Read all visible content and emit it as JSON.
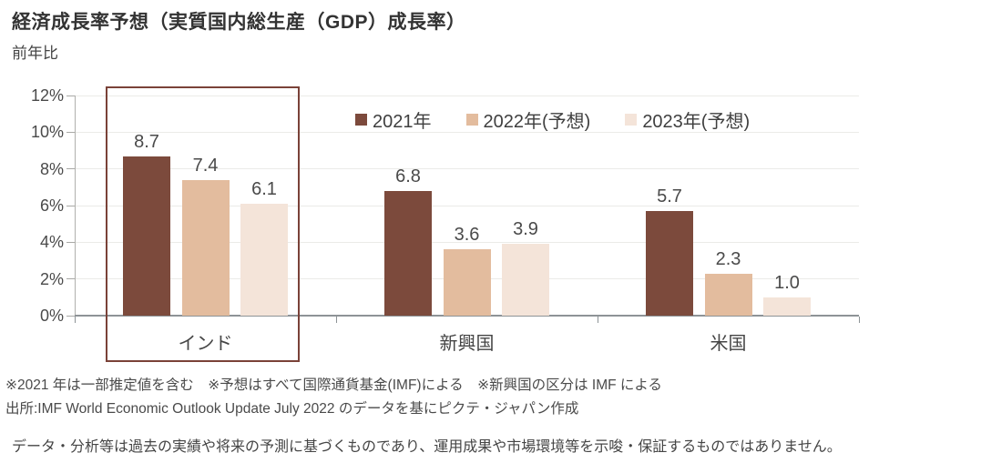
{
  "header": {
    "title": "経済成長率予想（実質国内総生産（GDP）成長率）",
    "subtitle": "前年比"
  },
  "chart_data": {
    "type": "bar",
    "title": "経済成長率予想（実質国内総生産（GDP）成長率）",
    "subtitle": "前年比",
    "unit": "%",
    "categories": [
      "インド",
      "新興国",
      "米国"
    ],
    "series": [
      {
        "name": "2021年",
        "color": "#7c4a3c",
        "values": [
          8.7,
          6.8,
          5.7
        ]
      },
      {
        "name": "2022年(予想)",
        "color": "#e3bc9e",
        "values": [
          7.4,
          3.6,
          2.3
        ]
      },
      {
        "name": "2023年(予想)",
        "color": "#f4e4d9",
        "values": [
          6.1,
          3.9,
          1.0
        ]
      }
    ],
    "y_axis": {
      "min": 0,
      "max": 12,
      "step": 2,
      "tick_labels": [
        "0%",
        "2%",
        "4%",
        "6%",
        "8%",
        "10%",
        "12%"
      ]
    },
    "ylim": [
      0,
      12
    ],
    "grid": true,
    "legend_position": "top",
    "highlighted_category": "インド",
    "value_labels": [
      "8.7",
      "7.4",
      "6.1",
      "6.8",
      "3.6",
      "3.9",
      "5.7",
      "2.3",
      "1.0"
    ],
    "highlight_box_color": "#7a4238"
  },
  "footer": {
    "note1": "※2021 年は一部推定値を含む　※予想はすべて国際通貨基金(IMF)による　※新興国の区分は IMF による",
    "note2": "出所:IMF World Economic Outlook Update July 2022 のデータを基にピクテ・ジャパン作成",
    "disclaimer": "データ・分析等は過去の実績や将来の予測に基づくものであり、運用成果や市場環境等を示唆・保証するものではありません。"
  }
}
